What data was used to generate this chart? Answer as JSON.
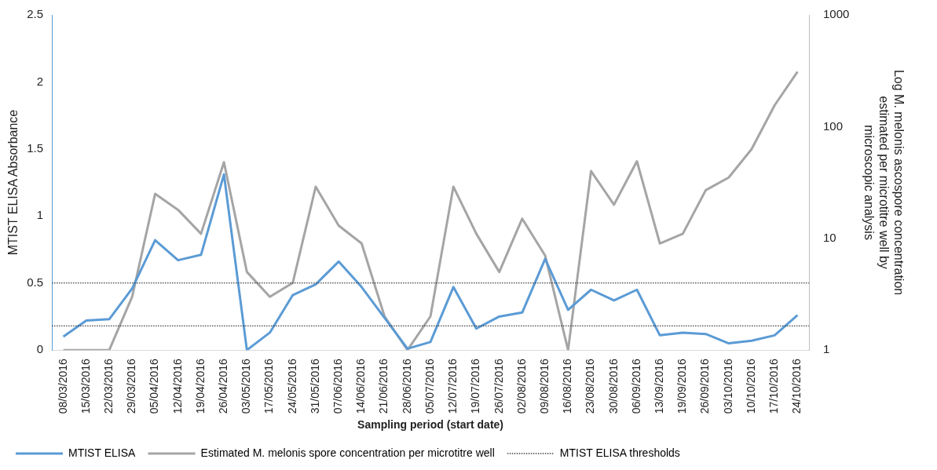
{
  "chart_data": {
    "type": "line",
    "xlabel": "Sampling period (start date)",
    "ylabel": "MTIST ELISA Absorbance",
    "y2label": "Log M. melonis ascospore concentration\nestimated per microtitre well by\nmicroscopic analysis",
    "categories": [
      "08/03/2016",
      "15/03/2016",
      "22/03/2016",
      "29/03/2016",
      "05/04/2016",
      "12/04/2016",
      "19/04/2016",
      "26/04/2016",
      "03/05/2016",
      "17/05/2016",
      "24/05/2016",
      "31/05/2016",
      "07/06/2016",
      "14/06/2016",
      "21/06/2016",
      "28/06/2016",
      "05/07/2016",
      "12/07/2016",
      "19/07/2016",
      "26/07/2016",
      "02/08/2016",
      "09/08/2016",
      "16/08/2016",
      "23/08/2016",
      "30/08/2016",
      "06/09/2016",
      "13/09/2016",
      "19/09/2016",
      "26/09/2016",
      "03/10/2016",
      "10/10/2016",
      "17/10/2016",
      "24/10/2016"
    ],
    "series": [
      {
        "name": "MTIST ELISA",
        "color": "#5b9bd5",
        "values": [
          0.1,
          0.22,
          0.23,
          0.46,
          0.82,
          0.67,
          0.71,
          1.31,
          0.0,
          0.13,
          0.41,
          0.49,
          0.66,
          0.47,
          0.24,
          0.01,
          0.06,
          0.47,
          0.16,
          0.25,
          0.28,
          0.68,
          0.3,
          0.45,
          0.37,
          0.45,
          0.11,
          0.13,
          0.12,
          0.05,
          0.07,
          0.11,
          0.26
        ]
      },
      {
        "name": "Estimated M. melonis spore concentration per microtitre well",
        "color": "#a5a5a5",
        "axis": "y2",
        "values": [
          1,
          1,
          1,
          3,
          25,
          18,
          11,
          48,
          5,
          3,
          4,
          29,
          13,
          9,
          2,
          1,
          2,
          29,
          11,
          5,
          15,
          7,
          1,
          40,
          20,
          49,
          9,
          11,
          27,
          35,
          63,
          155,
          310
        ]
      }
    ],
    "ref_lines": [
      {
        "axis": "y",
        "value": 0.5,
        "label": "MTIST ELISA thresholds",
        "color": "#404040",
        "line_style": "dotted"
      },
      {
        "axis": "y",
        "value": 0.18,
        "color": "#404040",
        "line_style": "dotted"
      }
    ],
    "ylim": [
      0,
      2.5
    ],
    "yticks": [
      0,
      0.5,
      1,
      1.5,
      2,
      2.5
    ],
    "y2lim": [
      1,
      1000
    ],
    "y2ticks": [
      1,
      10,
      100,
      1000
    ],
    "log": "y2",
    "grid": false,
    "legend": "bottom",
    "marker": "none",
    "line_style": "solid"
  }
}
